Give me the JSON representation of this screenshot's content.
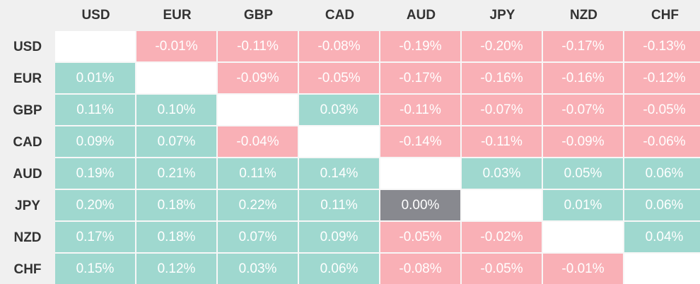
{
  "chart_data": {
    "type": "heatmap",
    "columns": [
      "USD",
      "EUR",
      "GBP",
      "CAD",
      "AUD",
      "JPY",
      "NZD",
      "CHF"
    ],
    "rows": [
      "USD",
      "EUR",
      "GBP",
      "CAD",
      "AUD",
      "JPY",
      "NZD",
      "CHF"
    ],
    "values": [
      [
        null,
        "-0.01%",
        "-0.11%",
        "-0.08%",
        "-0.19%",
        "-0.20%",
        "-0.17%",
        "-0.13%"
      ],
      [
        "0.01%",
        null,
        "-0.09%",
        "-0.05%",
        "-0.17%",
        "-0.16%",
        "-0.16%",
        "-0.12%"
      ],
      [
        "0.11%",
        "0.10%",
        null,
        "0.03%",
        "-0.11%",
        "-0.07%",
        "-0.07%",
        "-0.05%"
      ],
      [
        "0.09%",
        "0.07%",
        "-0.04%",
        null,
        "-0.14%",
        "-0.11%",
        "-0.09%",
        "-0.06%"
      ],
      [
        "0.19%",
        "0.21%",
        "0.11%",
        "0.14%",
        null,
        "0.03%",
        "0.05%",
        "0.06%"
      ],
      [
        "0.20%",
        "0.18%",
        "0.22%",
        "0.11%",
        "0.00%",
        null,
        "0.01%",
        "0.06%"
      ],
      [
        "0.17%",
        "0.18%",
        "0.07%",
        "0.09%",
        "-0.05%",
        "-0.02%",
        null,
        "0.04%"
      ],
      [
        "0.15%",
        "0.12%",
        "0.03%",
        "0.06%",
        "-0.08%",
        "-0.05%",
        "-0.01%",
        null
      ]
    ]
  },
  "colors": {
    "positive": "#9fd8cf",
    "negative": "#f9b0b6",
    "zero": "#88898f",
    "diagonal": "#ffffff",
    "header_bg": "#f0f0f0",
    "header_text": "#333333",
    "cell_text": "#ffffff"
  }
}
